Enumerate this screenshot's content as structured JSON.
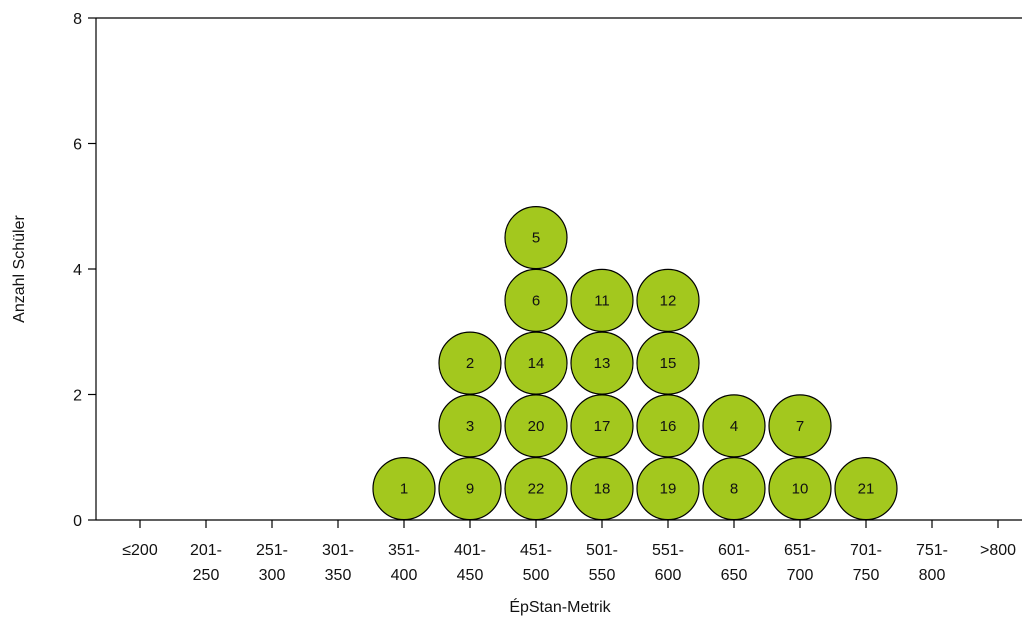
{
  "chart_data": {
    "type": "dot-plot",
    "xlabel": "ÉpStan-Metrik",
    "ylabel": "Anzahl Schüler",
    "ylim": [
      0,
      8
    ],
    "yticks": [
      0,
      2,
      4,
      6,
      8
    ],
    "grid": false,
    "categories": [
      [
        "≤200"
      ],
      [
        "201-",
        "250"
      ],
      [
        "251-",
        "300"
      ],
      [
        "301-",
        "350"
      ],
      [
        "351-",
        "400"
      ],
      [
        "401-",
        "450"
      ],
      [
        "451-",
        "500"
      ],
      [
        "501-",
        "550"
      ],
      [
        "551-",
        "600"
      ],
      [
        "601-",
        "650"
      ],
      [
        "651-",
        "700"
      ],
      [
        "701-",
        "750"
      ],
      [
        "751-",
        "800"
      ],
      [
        ">800"
      ]
    ],
    "stacks": [
      [],
      [],
      [],
      [],
      [
        "1"
      ],
      [
        "9",
        "3",
        "2"
      ],
      [
        "22",
        "20",
        "14",
        "6",
        "5"
      ],
      [
        "18",
        "17",
        "13",
        "11"
      ],
      [
        "19",
        "16",
        "15",
        "12"
      ],
      [
        "8",
        "4"
      ],
      [
        "10",
        "7"
      ],
      [
        "21"
      ],
      [],
      []
    ],
    "dot_color": "#a3c81e"
  }
}
